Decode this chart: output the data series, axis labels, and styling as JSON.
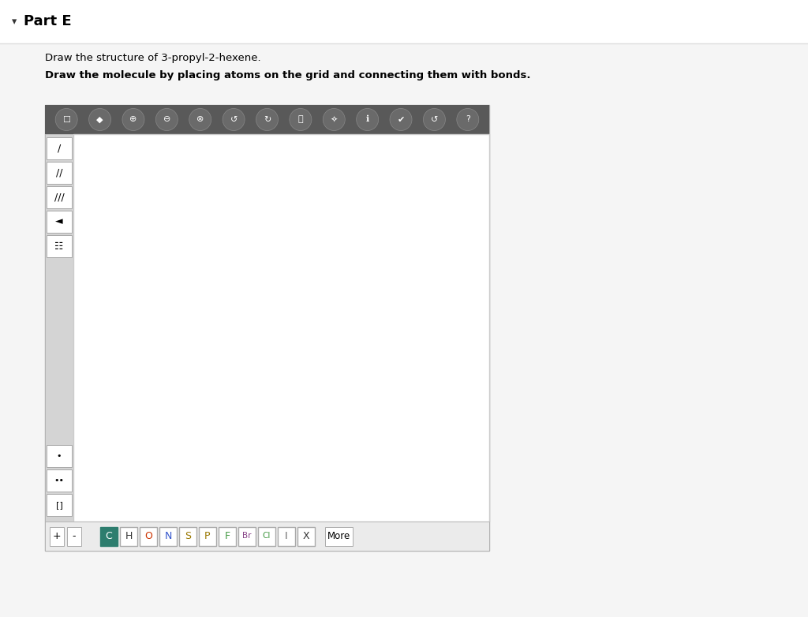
{
  "bg_color": "#f5f5f5",
  "header_bg": "#f5f5f5",
  "header_border": "#e0e0e0",
  "title_text": "Part E",
  "title_arrow": "▾",
  "instruction1": "Draw the structure of 3-propyl-2-hexene.",
  "instruction2": "Draw the molecule by placing atoms on the grid and connecting them with bonds.",
  "toolbar_bg": "#595959",
  "left_panel_bg": "#d4d4d4",
  "canvas_bg": "#ffffff",
  "bottom_bar_bg": "#ebebeb",
  "atom_buttons": [
    {
      "label": "C",
      "bg": "#2d7d6e",
      "fg": "#ffffff"
    },
    {
      "label": "H",
      "bg": "#ffffff",
      "fg": "#333333"
    },
    {
      "label": "O",
      "bg": "#ffffff",
      "fg": "#cc3300"
    },
    {
      "label": "N",
      "bg": "#ffffff",
      "fg": "#3355cc"
    },
    {
      "label": "S",
      "bg": "#ffffff",
      "fg": "#997700"
    },
    {
      "label": "P",
      "bg": "#ffffff",
      "fg": "#997700"
    },
    {
      "label": "F",
      "bg": "#ffffff",
      "fg": "#449944"
    },
    {
      "label": "Br",
      "bg": "#ffffff",
      "fg": "#884488"
    },
    {
      "label": "Cl",
      "bg": "#ffffff",
      "fg": "#449944"
    },
    {
      "label": "I",
      "bg": "#ffffff",
      "fg": "#666666"
    },
    {
      "label": "X",
      "bg": "#ffffff",
      "fg": "#333333"
    }
  ]
}
